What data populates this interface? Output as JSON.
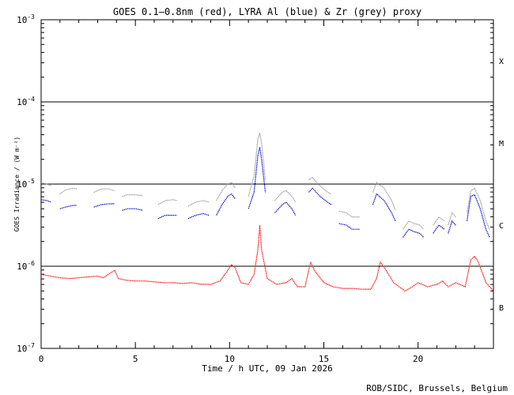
{
  "chart_data": {
    "type": "scatter",
    "title": "GOES 0.1—0.8nm (red), LYRA Al (blue) & Zr (grey) proxy",
    "xlabel": "Time / h UTC, 09 Jan 2026",
    "ylabel": "GOES Irradiance / (W m⁻²)",
    "credit": "ROB/SIDC, Brussels, Belgium",
    "xlim": [
      0,
      24
    ],
    "ylim_log10": [
      -7,
      -3
    ],
    "yscale": "log",
    "x_ticks": [
      {
        "value": 0,
        "label": "0"
      },
      {
        "value": 5,
        "label": "5"
      },
      {
        "value": 10,
        "label": "10"
      },
      {
        "value": 15,
        "label": "15"
      },
      {
        "value": 20,
        "label": "20"
      }
    ],
    "y_ticks": [
      {
        "exp": -3,
        "base": "10",
        "sup": "-3"
      },
      {
        "exp": -4,
        "base": "10",
        "sup": "-4"
      },
      {
        "exp": -5,
        "base": "10",
        "sup": "-5"
      },
      {
        "exp": -6,
        "base": "10",
        "sup": "-6"
      },
      {
        "exp": -7,
        "base": "10",
        "sup": "-7"
      }
    ],
    "flare_classes": [
      {
        "label": "X",
        "exp": -3.5
      },
      {
        "label": "M",
        "exp": -4.5
      },
      {
        "label": "C",
        "exp": -5.5
      },
      {
        "label": "B",
        "exp": -6.5
      }
    ],
    "class_lines_exp": [
      -4,
      -5,
      -6
    ],
    "series": [
      {
        "color": "#ff0000",
        "points": [
          [
            0,
            -6.1
          ],
          [
            0.5,
            -6.12
          ],
          [
            1,
            -6.14
          ],
          [
            1.5,
            -6.15
          ],
          [
            2,
            -6.14
          ],
          [
            2.5,
            -6.13
          ],
          [
            3,
            -6.12
          ],
          [
            3.3,
            -6.14
          ],
          [
            3.7,
            -6.08
          ],
          [
            3.9,
            -6.05
          ],
          [
            4.1,
            -6.15
          ],
          [
            4.5,
            -6.17
          ],
          [
            5,
            -6.18
          ],
          [
            5.5,
            -6.18
          ],
          [
            6,
            -6.19
          ],
          [
            6.5,
            -6.2
          ],
          [
            7,
            -6.2
          ],
          [
            7.5,
            -6.21
          ],
          [
            8,
            -6.2
          ],
          [
            8.5,
            -6.22
          ],
          [
            9,
            -6.22
          ],
          [
            9.5,
            -6.18
          ],
          [
            9.9,
            -6.05
          ],
          [
            10.1,
            -5.98
          ],
          [
            10.3,
            -6.02
          ],
          [
            10.6,
            -6.2
          ],
          [
            11,
            -6.22
          ],
          [
            11.3,
            -6.1
          ],
          [
            11.5,
            -5.8
          ],
          [
            11.6,
            -5.5
          ],
          [
            11.7,
            -5.8
          ],
          [
            12,
            -6.15
          ],
          [
            12.5,
            -6.22
          ],
          [
            13,
            -6.2
          ],
          [
            13.3,
            -6.15
          ],
          [
            13.6,
            -6.25
          ],
          [
            14,
            -6.25
          ],
          [
            14.3,
            -5.95
          ],
          [
            14.5,
            -6.05
          ],
          [
            15,
            -6.2
          ],
          [
            15.5,
            -6.25
          ],
          [
            16,
            -6.27
          ],
          [
            16.5,
            -6.27
          ],
          [
            17,
            -6.28
          ],
          [
            17.5,
            -6.28
          ],
          [
            17.8,
            -6.15
          ],
          [
            18,
            -5.95
          ],
          [
            18.3,
            -6.05
          ],
          [
            18.7,
            -6.2
          ],
          [
            19,
            -6.25
          ],
          [
            19.3,
            -6.3
          ],
          [
            19.7,
            -6.25
          ],
          [
            20,
            -6.2
          ],
          [
            20.5,
            -6.25
          ],
          [
            21,
            -6.22
          ],
          [
            21.3,
            -6.18
          ],
          [
            21.6,
            -6.25
          ],
          [
            22,
            -6.2
          ],
          [
            22.5,
            -6.25
          ],
          [
            22.8,
            -5.92
          ],
          [
            23,
            -5.88
          ],
          [
            23.2,
            -5.95
          ],
          [
            23.6,
            -6.2
          ],
          [
            24,
            -6.3
          ]
        ]
      },
      {
        "color": "#0000cc",
        "segments": [
          [
            [
              0,
              -5.19
            ],
            [
              0.3,
              -5.2
            ],
            [
              0.55,
              -5.22
            ]
          ],
          [
            [
              1,
              -5.3
            ],
            [
              1.3,
              -5.28
            ],
            [
              1.7,
              -5.26
            ],
            [
              1.9,
              -5.26
            ]
          ],
          [
            [
              2.8,
              -5.28
            ],
            [
              3.2,
              -5.25
            ],
            [
              3.6,
              -5.24
            ],
            [
              3.9,
              -5.24
            ]
          ],
          [
            [
              4.3,
              -5.32
            ],
            [
              4.6,
              -5.3
            ],
            [
              5,
              -5.3
            ],
            [
              5.4,
              -5.32
            ]
          ],
          [
            [
              6.2,
              -5.42
            ],
            [
              6.6,
              -5.38
            ],
            [
              7,
              -5.38
            ],
            [
              7.2,
              -5.38
            ]
          ],
          [
            [
              7.8,
              -5.42
            ],
            [
              8.2,
              -5.38
            ],
            [
              8.6,
              -5.36
            ],
            [
              8.9,
              -5.38
            ]
          ],
          [
            [
              9.3,
              -5.38
            ],
            [
              9.6,
              -5.25
            ],
            [
              9.9,
              -5.15
            ],
            [
              10.1,
              -5.12
            ],
            [
              10.3,
              -5.18
            ]
          ],
          [
            [
              11,
              -5.3
            ],
            [
              11.3,
              -5.1
            ],
            [
              11.5,
              -4.65
            ],
            [
              11.6,
              -4.55
            ],
            [
              11.7,
              -4.7
            ],
            [
              11.9,
              -5.1
            ]
          ],
          [
            [
              12.4,
              -5.35
            ],
            [
              12.8,
              -5.25
            ],
            [
              13,
              -5.22
            ],
            [
              13.3,
              -5.3
            ],
            [
              13.5,
              -5.38
            ]
          ],
          [
            [
              14.2,
              -5.1
            ],
            [
              14.4,
              -5.05
            ],
            [
              14.8,
              -5.15
            ],
            [
              15.2,
              -5.22
            ],
            [
              15.4,
              -5.25
            ]
          ],
          [
            [
              15.8,
              -5.48
            ],
            [
              16.2,
              -5.5
            ],
            [
              16.5,
              -5.55
            ],
            [
              16.9,
              -5.55
            ]
          ],
          [
            [
              17.6,
              -5.25
            ],
            [
              17.8,
              -5.12
            ],
            [
              18.2,
              -5.2
            ],
            [
              18.6,
              -5.35
            ],
            [
              18.8,
              -5.45
            ]
          ],
          [
            [
              19.2,
              -5.65
            ],
            [
              19.5,
              -5.55
            ],
            [
              19.8,
              -5.58
            ],
            [
              20.1,
              -5.6
            ],
            [
              20.3,
              -5.65
            ]
          ],
          [
            [
              20.8,
              -5.6
            ],
            [
              21.1,
              -5.5
            ],
            [
              21.4,
              -5.55
            ]
          ],
          [
            [
              21.6,
              -5.6
            ],
            [
              21.8,
              -5.45
            ],
            [
              22,
              -5.5
            ]
          ],
          [
            [
              22.6,
              -5.45
            ],
            [
              22.8,
              -5.15
            ],
            [
              23,
              -5.13
            ],
            [
              23.3,
              -5.3
            ],
            [
              23.6,
              -5.55
            ],
            [
              23.8,
              -5.65
            ]
          ]
        ]
      },
      {
        "color": "#999999",
        "segments": [
          [
            [
              0,
              -4.98
            ],
            [
              0.3,
              -5.0
            ],
            [
              0.55,
              -5.02
            ]
          ],
          [
            [
              1,
              -5.12
            ],
            [
              1.3,
              -5.07
            ],
            [
              1.7,
              -5.05
            ],
            [
              1.9,
              -5.06
            ]
          ],
          [
            [
              2.8,
              -5.1
            ],
            [
              3.2,
              -5.06
            ],
            [
              3.6,
              -5.06
            ],
            [
              3.9,
              -5.08
            ]
          ],
          [
            [
              4.3,
              -5.15
            ],
            [
              4.6,
              -5.13
            ],
            [
              5,
              -5.13
            ],
            [
              5.4,
              -5.14
            ]
          ],
          [
            [
              6.2,
              -5.25
            ],
            [
              6.6,
              -5.2
            ],
            [
              7,
              -5.19
            ],
            [
              7.2,
              -5.2
            ]
          ],
          [
            [
              7.8,
              -5.27
            ],
            [
              8.2,
              -5.22
            ],
            [
              8.6,
              -5.2
            ],
            [
              8.9,
              -5.22
            ]
          ],
          [
            [
              9.3,
              -5.2
            ],
            [
              9.6,
              -5.08
            ],
            [
              9.9,
              -5.0
            ],
            [
              10.1,
              -4.98
            ],
            [
              10.3,
              -5.05
            ]
          ],
          [
            [
              11,
              -5.15
            ],
            [
              11.3,
              -4.9
            ],
            [
              11.5,
              -4.45
            ],
            [
              11.6,
              -4.38
            ],
            [
              11.7,
              -4.5
            ],
            [
              11.9,
              -4.95
            ]
          ],
          [
            [
              12.4,
              -5.2
            ],
            [
              12.8,
              -5.1
            ],
            [
              13,
              -5.08
            ],
            [
              13.3,
              -5.15
            ],
            [
              13.5,
              -5.22
            ]
          ],
          [
            [
              14.2,
              -4.95
            ],
            [
              14.4,
              -4.92
            ],
            [
              14.8,
              -5.02
            ],
            [
              15.2,
              -5.1
            ],
            [
              15.4,
              -5.12
            ]
          ],
          [
            [
              15.8,
              -5.33
            ],
            [
              16.2,
              -5.35
            ],
            [
              16.5,
              -5.4
            ],
            [
              16.9,
              -5.4
            ]
          ],
          [
            [
              17.6,
              -5.1
            ],
            [
              17.8,
              -4.98
            ],
            [
              18.2,
              -5.05
            ],
            [
              18.6,
              -5.2
            ],
            [
              18.8,
              -5.32
            ]
          ],
          [
            [
              19.2,
              -5.55
            ],
            [
              19.5,
              -5.45
            ],
            [
              19.8,
              -5.48
            ],
            [
              20.1,
              -5.5
            ],
            [
              20.3,
              -5.55
            ]
          ],
          [
            [
              20.8,
              -5.5
            ],
            [
              21.1,
              -5.4
            ],
            [
              21.4,
              -5.45
            ]
          ],
          [
            [
              21.6,
              -5.5
            ],
            [
              21.8,
              -5.35
            ],
            [
              22,
              -5.4
            ]
          ],
          [
            [
              22.6,
              -5.35
            ],
            [
              22.8,
              -5.08
            ],
            [
              23,
              -5.05
            ],
            [
              23.3,
              -5.2
            ],
            [
              23.6,
              -5.45
            ],
            [
              23.8,
              -5.55
            ]
          ]
        ]
      }
    ]
  }
}
